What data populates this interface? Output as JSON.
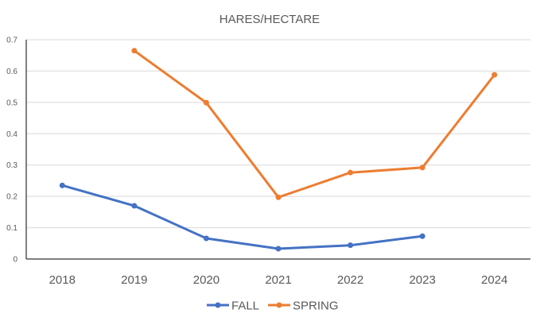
{
  "chart_data": {
    "type": "line",
    "title": "HARES/HECTARE",
    "xlabel": "",
    "ylabel": "",
    "x": [
      "2018",
      "2019",
      "2020",
      "2021",
      "2022",
      "2023",
      "2024"
    ],
    "ylim": [
      0,
      0.7
    ],
    "yticks": [
      0,
      0.1,
      0.2,
      0.3,
      0.4,
      0.5,
      0.6,
      0.7
    ],
    "ytick_labels": [
      "0",
      "0.1",
      "0.2",
      "0.3",
      "0.4",
      "0.5",
      "0.6",
      "0.7"
    ],
    "grid": true,
    "legend_position": "bottom",
    "series": [
      {
        "name": "FALL",
        "color": "#4472c4",
        "values": [
          0.235,
          0.17,
          0.066,
          0.033,
          0.044,
          0.073,
          null
        ]
      },
      {
        "name": "SPRING",
        "color": "#ed7d31",
        "values": [
          null,
          0.665,
          0.499,
          0.197,
          0.276,
          0.292,
          0.588
        ]
      }
    ]
  }
}
